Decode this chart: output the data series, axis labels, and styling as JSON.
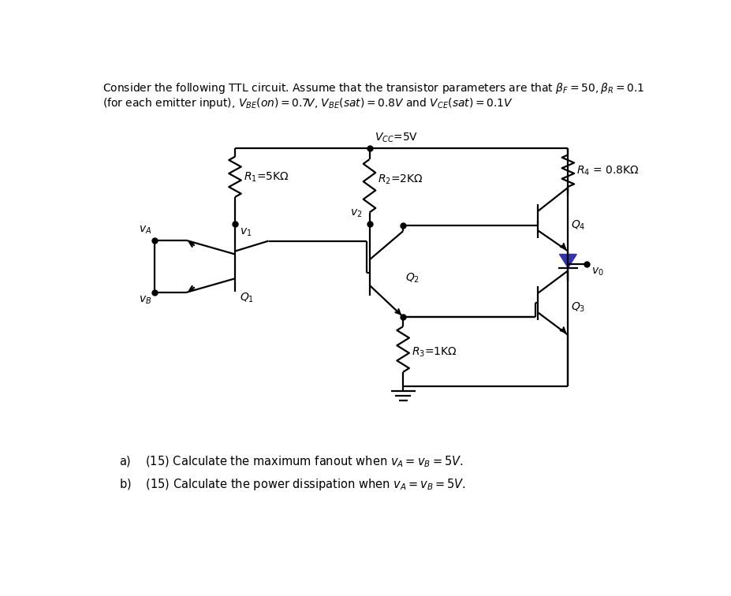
{
  "title_line1": "Consider the following TTL circuit. Assume that the transistor parameters are that $\\beta_F = 50, \\beta_R = 0.1$",
  "title_line2": "(for each emitter input), $V_{BE}(on) = 0.7V$, $V_{BE}(sat) = 0.8V$ and $V_{CE}(sat) = 0.1V$",
  "vcc_label": "$V_{CC}$=5V",
  "R1_label": "$R_1$=5KΩ",
  "R2_label": "$R_2$=2KΩ",
  "R3_label": "$R_3$=1KΩ",
  "R4_label": "$R_4$ = 0.8KΩ",
  "Q1_label": "$Q_1$",
  "Q2_label": "$Q_2$",
  "Q3_label": "$Q_3$",
  "Q4_label": "$Q_4$",
  "v1_label": "$v_1$",
  "v2_label": "$v_2$",
  "vA_label": "$v_A$",
  "vB_label": "$v_B$",
  "vo_label": "$v_0$",
  "question_a": "a)    (15) Calculate the maximum fanout when $v_A = v_B = 5V$.",
  "question_b": "b)    (15) Calculate the power dissipation when $v_A = v_B = 5V$.",
  "bg_color": "#ffffff",
  "line_color": "#000000",
  "diode_color": "#3333aa"
}
